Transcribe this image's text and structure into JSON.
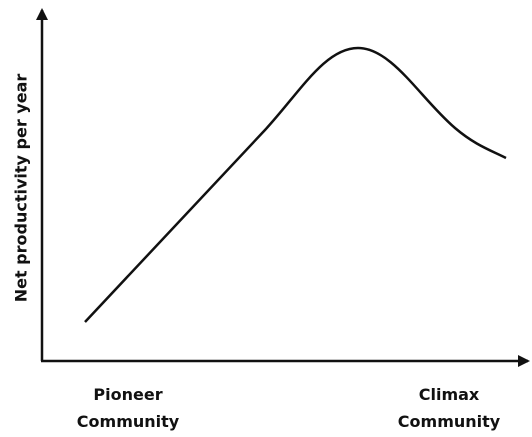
{
  "y_axis_label": "Net productivity per year",
  "x_labels": [
    {
      "lines": [
        "Pioneer",
        "Community"
      ]
    },
    {
      "lines": [
        "Climax",
        "Community"
      ]
    }
  ]
}
